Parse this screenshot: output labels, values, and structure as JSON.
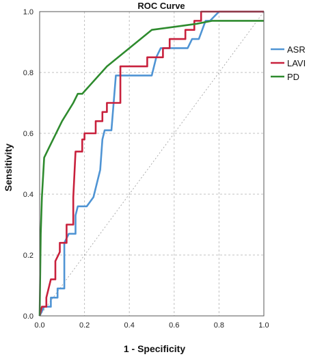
{
  "chart_data": {
    "type": "line",
    "title": "ROC Curve",
    "xlabel": "1 - Specificity",
    "ylabel": "Sensitivity",
    "xlim": [
      0,
      1
    ],
    "ylim": [
      0,
      1
    ],
    "xticks": [
      "0.0",
      "0.2",
      "0.4",
      "0.6",
      "0.8",
      "1.0"
    ],
    "yticks": [
      "0.0",
      "0.2",
      "0.4",
      "0.6",
      "0.8",
      "1.0"
    ],
    "grid": true,
    "legend_position": "right",
    "series": [
      {
        "name": "ASR",
        "color": "#4f94d4",
        "points": [
          [
            0,
            0
          ],
          [
            0.02,
            0.03
          ],
          [
            0.05,
            0.03
          ],
          [
            0.05,
            0.06
          ],
          [
            0.08,
            0.06
          ],
          [
            0.08,
            0.09
          ],
          [
            0.11,
            0.09
          ],
          [
            0.11,
            0.24
          ],
          [
            0.13,
            0.27
          ],
          [
            0.16,
            0.27
          ],
          [
            0.16,
            0.33
          ],
          [
            0.17,
            0.36
          ],
          [
            0.21,
            0.36
          ],
          [
            0.24,
            0.39
          ],
          [
            0.27,
            0.48
          ],
          [
            0.28,
            0.58
          ],
          [
            0.29,
            0.61
          ],
          [
            0.32,
            0.61
          ],
          [
            0.34,
            0.79
          ],
          [
            0.5,
            0.79
          ],
          [
            0.52,
            0.85
          ],
          [
            0.54,
            0.88
          ],
          [
            0.61,
            0.88
          ],
          [
            0.66,
            0.88
          ],
          [
            0.68,
            0.91
          ],
          [
            0.71,
            0.91
          ],
          [
            0.74,
            0.97
          ],
          [
            0.76,
            0.97
          ],
          [
            0.8,
            1.0
          ],
          [
            1.0,
            1.0
          ]
        ]
      },
      {
        "name": "LAVI",
        "color": "#c8203c",
        "points": [
          [
            0,
            0
          ],
          [
            0.01,
            0.03
          ],
          [
            0.03,
            0.03
          ],
          [
            0.03,
            0.06
          ],
          [
            0.04,
            0.09
          ],
          [
            0.05,
            0.12
          ],
          [
            0.07,
            0.12
          ],
          [
            0.07,
            0.18
          ],
          [
            0.09,
            0.21
          ],
          [
            0.09,
            0.24
          ],
          [
            0.12,
            0.24
          ],
          [
            0.12,
            0.3
          ],
          [
            0.15,
            0.3
          ],
          [
            0.15,
            0.39
          ],
          [
            0.16,
            0.54
          ],
          [
            0.19,
            0.54
          ],
          [
            0.19,
            0.58
          ],
          [
            0.2,
            0.58
          ],
          [
            0.2,
            0.6
          ],
          [
            0.25,
            0.6
          ],
          [
            0.25,
            0.64
          ],
          [
            0.28,
            0.64
          ],
          [
            0.28,
            0.67
          ],
          [
            0.3,
            0.67
          ],
          [
            0.3,
            0.7
          ],
          [
            0.36,
            0.7
          ],
          [
            0.36,
            0.82
          ],
          [
            0.48,
            0.82
          ],
          [
            0.48,
            0.85
          ],
          [
            0.55,
            0.85
          ],
          [
            0.55,
            0.88
          ],
          [
            0.58,
            0.88
          ],
          [
            0.58,
            0.91
          ],
          [
            0.65,
            0.91
          ],
          [
            0.65,
            0.94
          ],
          [
            0.69,
            0.94
          ],
          [
            0.69,
            0.97
          ],
          [
            0.72,
            0.97
          ],
          [
            0.72,
            1.0
          ],
          [
            1.0,
            1.0
          ]
        ]
      },
      {
        "name": "PD",
        "color": "#2e8b2e",
        "points": [
          [
            0,
            0
          ],
          [
            0.005,
            0.27
          ],
          [
            0.01,
            0.39
          ],
          [
            0.02,
            0.52
          ],
          [
            0.04,
            0.55
          ],
          [
            0.08,
            0.61
          ],
          [
            0.1,
            0.64
          ],
          [
            0.15,
            0.7
          ],
          [
            0.17,
            0.73
          ],
          [
            0.19,
            0.73
          ],
          [
            0.3,
            0.82
          ],
          [
            0.5,
            0.94
          ],
          [
            0.6,
            0.95
          ],
          [
            0.7,
            0.96
          ],
          [
            0.77,
            0.97
          ],
          [
            1.0,
            0.97
          ]
        ]
      }
    ],
    "reference_line": {
      "color": "#999999",
      "points": [
        [
          0,
          0
        ],
        [
          1,
          1
        ]
      ]
    }
  }
}
